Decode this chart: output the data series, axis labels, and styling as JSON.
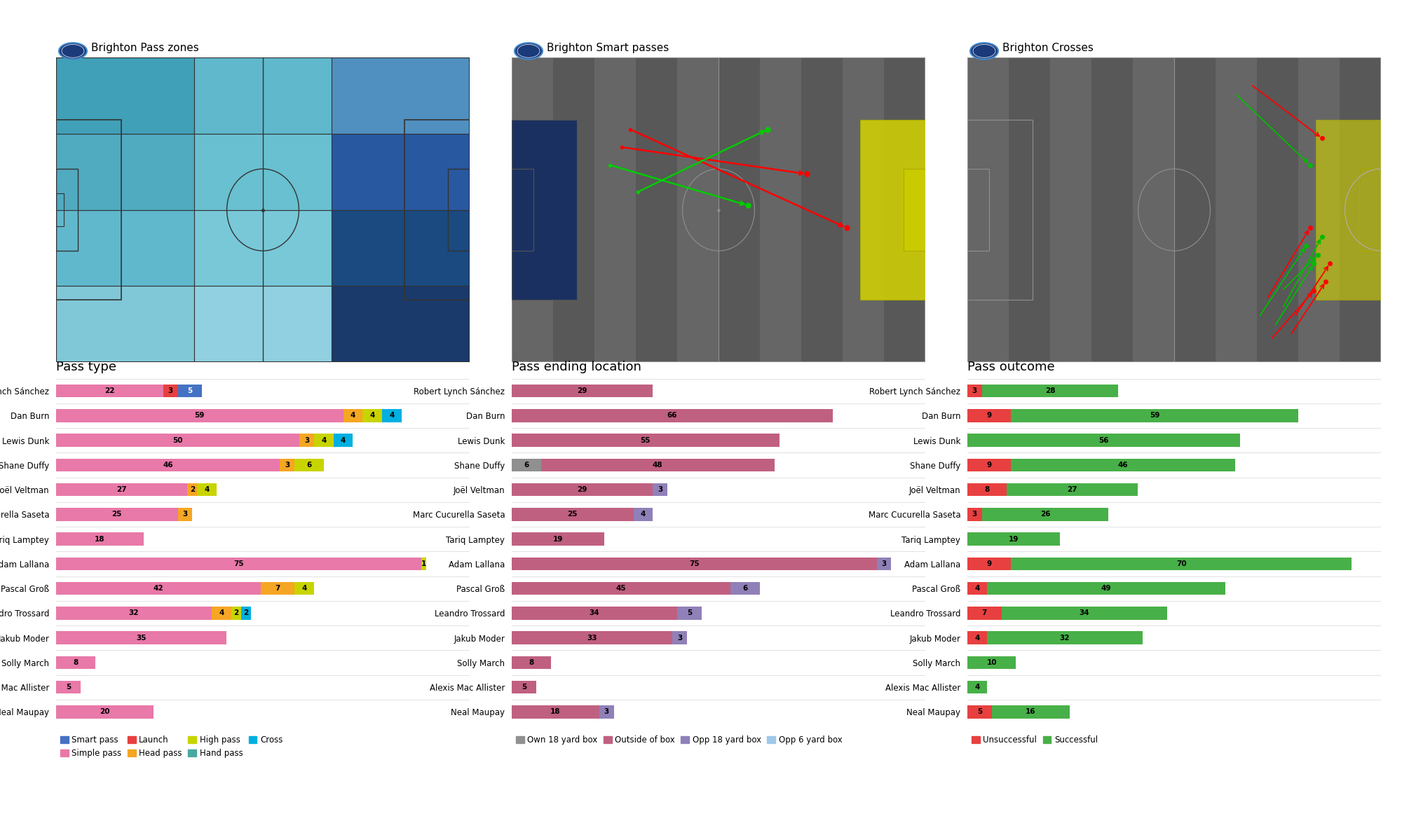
{
  "players": [
    "Robert Lynch Sánchez",
    "Dan Burn",
    "Lewis Dunk",
    "Shane Duffy",
    "Joël Veltman",
    "Marc Cucurella Saseta",
    "Tariq Lamptey",
    "Adam Lallana",
    "Pascal Groß",
    "Leandro Trossard",
    "Jakub Moder",
    "Solly March",
    "Alexis Mac Allister",
    "Neal Maupay"
  ],
  "pass_type": {
    "simple": [
      22,
      59,
      50,
      46,
      27,
      25,
      18,
      75,
      42,
      32,
      35,
      8,
      5,
      20
    ],
    "launch": [
      3,
      0,
      0,
      0,
      0,
      0,
      0,
      0,
      0,
      0,
      0,
      0,
      0,
      0
    ],
    "head": [
      0,
      4,
      3,
      3,
      2,
      3,
      0,
      0,
      7,
      4,
      0,
      0,
      0,
      0
    ],
    "high": [
      0,
      4,
      4,
      6,
      4,
      0,
      0,
      1,
      4,
      2,
      0,
      0,
      0,
      0
    ],
    "hand": [
      0,
      0,
      0,
      0,
      0,
      0,
      0,
      0,
      0,
      0,
      0,
      0,
      0,
      0
    ],
    "smart": [
      5,
      0,
      0,
      0,
      0,
      0,
      0,
      0,
      0,
      0,
      0,
      0,
      0,
      0
    ],
    "cross": [
      0,
      4,
      4,
      0,
      0,
      0,
      0,
      0,
      0,
      2,
      0,
      0,
      0,
      0
    ]
  },
  "pass_location": {
    "own18": [
      0,
      0,
      0,
      6,
      0,
      0,
      0,
      0,
      0,
      0,
      0,
      0,
      0,
      0
    ],
    "outside": [
      29,
      66,
      55,
      48,
      29,
      25,
      19,
      75,
      45,
      34,
      33,
      8,
      5,
      18
    ],
    "opp18": [
      0,
      0,
      0,
      0,
      3,
      4,
      0,
      3,
      6,
      5,
      3,
      0,
      0,
      3
    ],
    "opp6": [
      0,
      0,
      0,
      0,
      0,
      0,
      0,
      0,
      0,
      0,
      0,
      0,
      0,
      0
    ]
  },
  "pass_outcome": {
    "unsuccessful": [
      3,
      9,
      0,
      9,
      8,
      3,
      0,
      9,
      4,
      7,
      4,
      0,
      0,
      5
    ],
    "successful": [
      28,
      59,
      56,
      46,
      27,
      26,
      19,
      70,
      49,
      34,
      32,
      10,
      4,
      16
    ]
  },
  "colors": {
    "simple_pass": "#e879a8",
    "launch": "#e84040",
    "head_pass": "#f5a623",
    "high_pass": "#c8d400",
    "hand_pass": "#4aa8a0",
    "smart_pass": "#4472c4",
    "cross": "#00b0e0",
    "own18": "#909090",
    "outside": "#c06080",
    "opp18": "#9080b8",
    "opp6": "#a0c8e8",
    "unsuccessful": "#e84040",
    "successful": "#48b048"
  },
  "pitch1_title": "Brighton Pass zones",
  "pitch2_title": "Brighton Smart passes",
  "pitch3_title": "Brighton Crosses",
  "bar1_title": "Pass type",
  "bar2_title": "Pass ending location",
  "bar3_title": "Pass outcome",
  "legend1_labels": [
    "Smart pass",
    "Simple pass",
    "Launch",
    "Head pass",
    "High pass",
    "Hand pass",
    "Cross"
  ],
  "legend1_colors": [
    "#4472c4",
    "#e879a8",
    "#e84040",
    "#f5a623",
    "#c8d400",
    "#4aa8a0",
    "#00b0e0"
  ],
  "legend2_labels": [
    "Own 18 yard box",
    "Outside of box",
    "Opp 18 yard box",
    "Opp 6 yard box"
  ],
  "legend2_colors": [
    "#909090",
    "#c06080",
    "#9080b8",
    "#a0c8e8"
  ],
  "legend3_labels": [
    "Unsuccessful",
    "Successful"
  ],
  "legend3_colors": [
    "#e84040",
    "#48b048"
  ],
  "pitch1_zone_colors": [
    [
      "#add8e6",
      "#add8e6",
      "#add8e6",
      "#1a3a6b"
    ],
    [
      "#6ab8cc",
      "#7fc8d8",
      "#7fc8d8",
      "#1a4a80"
    ],
    [
      "#5ab0c8",
      "#6dc8d8",
      "#a0d8e8",
      "#2858a0"
    ],
    [
      "#4098b8",
      "#58b8cc",
      "#90d0e0",
      "#5090b8"
    ]
  ],
  "pitch2_pen_box_color": "#1a3a6b",
  "pitch2_opp_box_color": "#cccc00",
  "pitch3_opp_box_color": "#cccc00",
  "smart_pass_arrows": [
    [
      30,
      52,
      85,
      30,
      "red"
    ],
    [
      28,
      48,
      75,
      42,
      "red"
    ],
    [
      32,
      38,
      65,
      52,
      "#00cc00"
    ],
    [
      25,
      44,
      60,
      35,
      "#00cc00"
    ]
  ],
  "cross_arrows": [
    [
      78,
      8,
      88,
      22,
      "#00bb00"
    ],
    [
      80,
      12,
      90,
      28,
      "#00bb00"
    ],
    [
      82,
      6,
      91,
      18,
      "red"
    ],
    [
      76,
      14,
      87,
      30,
      "red"
    ],
    [
      74,
      10,
      86,
      26,
      "#00bb00"
    ],
    [
      80,
      16,
      89,
      24,
      "#00bb00"
    ],
    [
      77,
      5,
      88,
      16,
      "red"
    ],
    [
      83,
      10,
      92,
      22,
      "red"
    ],
    [
      68,
      60,
      87,
      44,
      "#00bb00"
    ],
    [
      72,
      62,
      90,
      50,
      "red"
    ]
  ]
}
